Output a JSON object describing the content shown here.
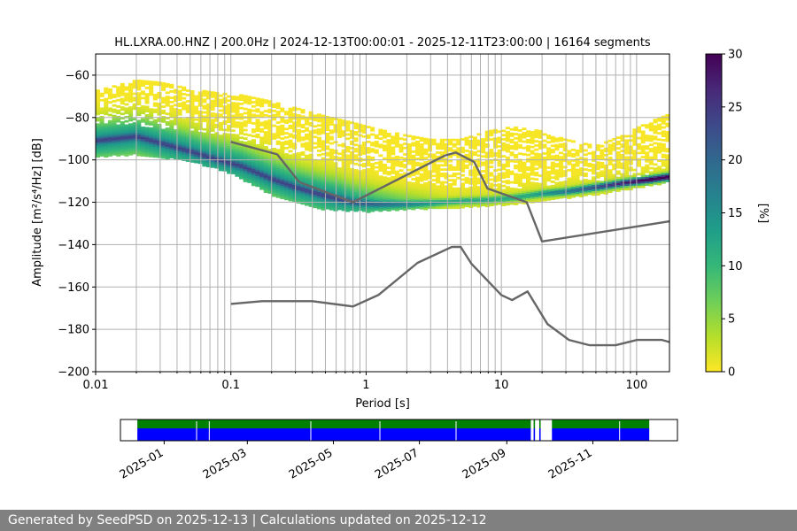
{
  "chart_data": [
    {
      "type": "heatmap",
      "title": "HL.LXRA.00.HNZ | 200.0Hz | 2024-12-13T00:00:01 - 2025-12-11T23:00:00 | 16164 segments",
      "xlabel": "Period [s]",
      "ylabel": "Amplitude [m²/s⁴/Hz] [dB]",
      "xscale": "log",
      "xlim": [
        0.01,
        175
      ],
      "ylim": [
        -200,
        -50
      ],
      "xticks": [
        {
          "v": 0.01,
          "label": "0.01"
        },
        {
          "v": 0.1,
          "label": "0.1"
        },
        {
          "v": 1,
          "label": "1"
        },
        {
          "v": 10,
          "label": "10"
        },
        {
          "v": 100,
          "label": "100"
        }
      ],
      "yticks": [
        {
          "v": -60,
          "label": "−60"
        },
        {
          "v": -80,
          "label": "−80"
        },
        {
          "v": -100,
          "label": "−100"
        },
        {
          "v": -120,
          "label": "−120"
        },
        {
          "v": -140,
          "label": "−140"
        },
        {
          "v": -160,
          "label": "−160"
        },
        {
          "v": -180,
          "label": "−180"
        },
        {
          "v": -200,
          "label": "−200"
        }
      ],
      "mode_curve": [
        [
          0.01,
          -91
        ],
        [
          0.02,
          -89
        ],
        [
          0.03,
          -92
        ],
        [
          0.05,
          -96
        ],
        [
          0.08,
          -100
        ],
        [
          0.12,
          -103
        ],
        [
          0.2,
          -109
        ],
        [
          0.3,
          -113
        ],
        [
          0.5,
          -117
        ],
        [
          0.8,
          -120
        ],
        [
          1.2,
          -121
        ],
        [
          2,
          -121
        ],
        [
          3,
          -120.5
        ],
        [
          5,
          -119.5
        ],
        [
          8,
          -119
        ],
        [
          12,
          -118
        ],
        [
          20,
          -116
        ],
        [
          30,
          -115
        ],
        [
          50,
          -113
        ],
        [
          80,
          -111
        ],
        [
          120,
          -109.5
        ],
        [
          175,
          -108
        ]
      ],
      "envelope_upper": [
        [
          0.01,
          -67
        ],
        [
          0.02,
          -62
        ],
        [
          0.03,
          -63
        ],
        [
          0.05,
          -66
        ],
        [
          0.08,
          -68
        ],
        [
          0.12,
          -69
        ],
        [
          0.2,
          -72
        ],
        [
          0.3,
          -75
        ],
        [
          0.5,
          -79
        ],
        [
          0.8,
          -82
        ],
        [
          1.2,
          -85
        ],
        [
          2,
          -88
        ],
        [
          3,
          -90
        ],
        [
          5,
          -90
        ],
        [
          8,
          -86
        ],
        [
          12,
          -84
        ],
        [
          20,
          -86
        ],
        [
          30,
          -90
        ],
        [
          50,
          -93
        ],
        [
          80,
          -88
        ],
        [
          120,
          -82
        ],
        [
          175,
          -78
        ]
      ],
      "envelope_lower": [
        [
          0.01,
          -98
        ],
        [
          0.02,
          -97
        ],
        [
          0.05,
          -100
        ],
        [
          0.1,
          -106
        ],
        [
          0.2,
          -116
        ],
        [
          0.3,
          -120
        ],
        [
          0.5,
          -123
        ],
        [
          1,
          -124
        ],
        [
          2,
          -123
        ],
        [
          5,
          -122
        ],
        [
          10,
          -121
        ],
        [
          20,
          -119
        ],
        [
          50,
          -116
        ],
        [
          100,
          -113
        ],
        [
          175,
          -110
        ]
      ],
      "band_upper": [
        [
          0.01,
          -84
        ],
        [
          0.02,
          -84
        ],
        [
          0.05,
          -86
        ],
        [
          0.1,
          -89
        ],
        [
          0.2,
          -95
        ],
        [
          0.5,
          -102
        ],
        [
          1,
          -106
        ],
        [
          2,
          -110
        ],
        [
          5,
          -113
        ],
        [
          10,
          -114
        ],
        [
          20,
          -112
        ],
        [
          50,
          -110
        ],
        [
          100,
          -108
        ],
        [
          175,
          -105
        ]
      ],
      "nhnm": [
        [
          0.1,
          -91.5
        ],
        [
          0.22,
          -97.4
        ],
        [
          0.32,
          -110.5
        ],
        [
          0.8,
          -120
        ],
        [
          3.8,
          -98
        ],
        [
          4.6,
          -96.5
        ],
        [
          6.3,
          -101
        ],
        [
          7.9,
          -113.5
        ],
        [
          15.4,
          -120
        ],
        [
          20,
          -138.5
        ],
        [
          175,
          -129
        ]
      ],
      "nlnm": [
        [
          0.1,
          -168
        ],
        [
          0.17,
          -166.7
        ],
        [
          0.4,
          -166.7
        ],
        [
          0.8,
          -169.2
        ],
        [
          1.24,
          -163.7
        ],
        [
          2.4,
          -148.6
        ],
        [
          4.3,
          -141.1
        ],
        [
          5,
          -141.1
        ],
        [
          6,
          -149
        ],
        [
          10,
          -163.8
        ],
        [
          12,
          -166.2
        ],
        [
          15.6,
          -162.1
        ],
        [
          21.9,
          -177.5
        ],
        [
          31.6,
          -185
        ],
        [
          45,
          -187.5
        ],
        [
          70,
          -187.5
        ],
        [
          101,
          -185
        ],
        [
          154,
          -185
        ],
        [
          175,
          -186
        ]
      ],
      "curve_color": "#666666"
    },
    {
      "type": "colorbar",
      "label": "[%]",
      "range": [
        0,
        30
      ],
      "ticks": [
        "0",
        "5",
        "10",
        "15",
        "20",
        "25",
        "30"
      ],
      "colormap": [
        "#fde725",
        "#b5de2b",
        "#6ece58",
        "#35b779",
        "#1f9e89",
        "#26828e",
        "#31688e",
        "#3e4989",
        "#482878",
        "#440154"
      ]
    },
    {
      "type": "timeline",
      "date_range": [
        "2024-12-13",
        "2025-12-11"
      ],
      "xticks": [
        "2025-01",
        "2025-03",
        "2025-05",
        "2025-07",
        "2025-09",
        "2025-11"
      ],
      "green_color": "#008000",
      "blue_color": "#0000ff",
      "coverage_segments": [
        [
          "2024-12-13",
          "2025-09-18"
        ],
        [
          "2025-09-20",
          "2025-09-21"
        ],
        [
          "2025-09-24",
          "2025-09-25"
        ],
        [
          "2025-10-03",
          "2025-12-11"
        ]
      ],
      "gaps": [
        "2025-01-24",
        "2025-02-02",
        "2025-04-15",
        "2025-06-03",
        "2025-07-27",
        "2025-11-20"
      ]
    }
  ],
  "footer": {
    "text": "Generated by SeedPSD on 2025-12-13 | Calculations updated on 2025-12-12"
  }
}
